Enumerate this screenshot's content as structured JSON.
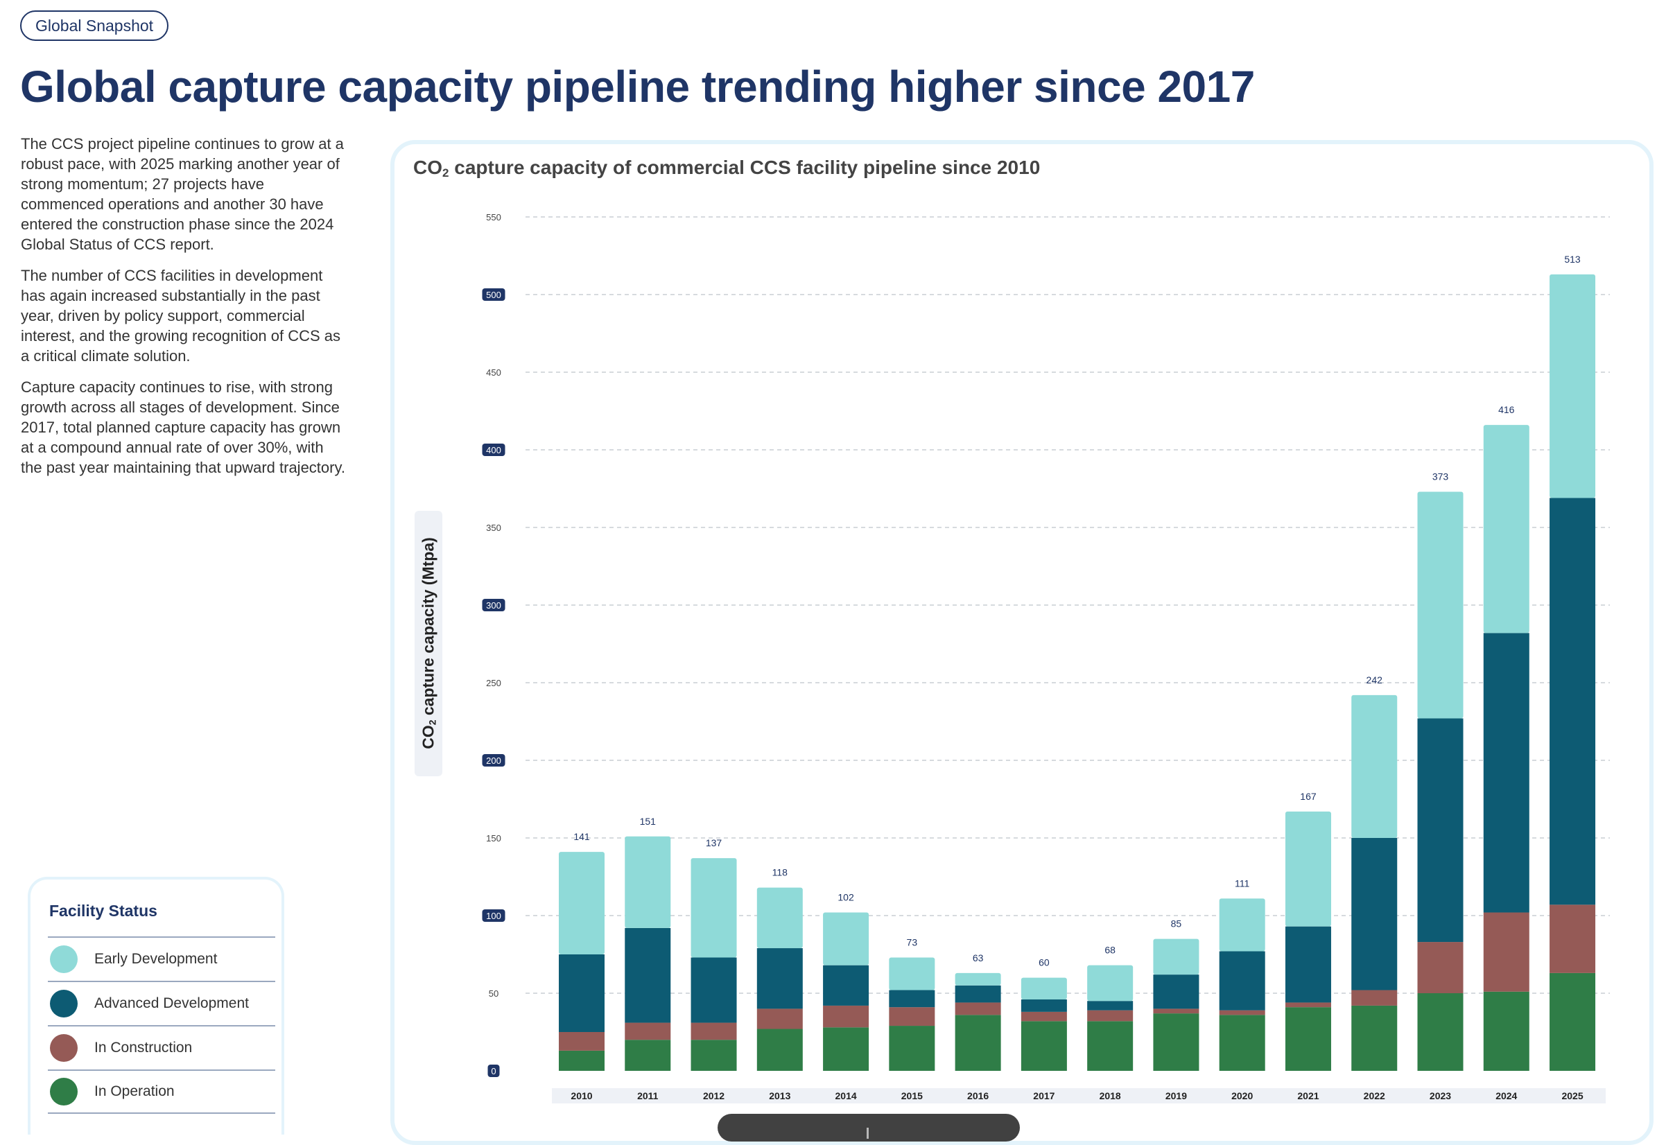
{
  "badge": "Global Snapshot",
  "headline": "Global capture capacity pipeline trending higher since 2017",
  "intro": [
    "The CCS project pipeline continues to grow at a robust pace, with 2025 marking another year of strong momentum; 27 projects have commenced operations and another 30 have entered the construction phase since the 2024 Global Status of CCS report.",
    "The number of CCS facilities in development has again increased substantially in the past year, driven by policy support, commercial interest, and the growing recognition of CCS as a critical climate solution.",
    "Capture capacity continues to rise, with strong growth across all stages of development. Since 2017, total planned capture capacity has grown at a compound annual rate of over 30%, with the past year maintaining that upward trajectory."
  ],
  "legend": {
    "title": "Facility Status",
    "items": [
      {
        "label": "Early Development",
        "color": "#8fdad8"
      },
      {
        "label": "Advanced Development",
        "color": "#0d5b73"
      },
      {
        "label": "In Construction",
        "color": "#955a56"
      },
      {
        "label": "In Operation",
        "color": "#2f7d47"
      }
    ]
  },
  "chart_data": {
    "type": "bar",
    "stacked": true,
    "title_parts": {
      "pre": "CO",
      "sub": "2",
      "post": " capture capacity of commercial CCS facility pipeline since 2010"
    },
    "ylabel_parts": {
      "pre": "CO",
      "sub": "2",
      "post": " capture capacity (Mtpa)"
    },
    "xlabel": "",
    "ylim": [
      0,
      550
    ],
    "yticks": [
      0,
      50,
      100,
      150,
      200,
      250,
      300,
      350,
      400,
      450,
      500,
      550
    ],
    "highlighted_ticks": [
      0,
      100,
      200,
      300,
      400,
      500
    ],
    "grid": true,
    "categories": [
      "2010",
      "2011",
      "2012",
      "2013",
      "2014",
      "2015",
      "2016",
      "2017",
      "2018",
      "2019",
      "2020",
      "2021",
      "2022",
      "2023",
      "2024",
      "2025"
    ],
    "totals": [
      141,
      151,
      137,
      118,
      102,
      73,
      63,
      60,
      68,
      85,
      111,
      167,
      242,
      373,
      416,
      513
    ],
    "series": [
      {
        "name": "In Operation",
        "color": "#2f7d47",
        "values": [
          13,
          20,
          20,
          27,
          28,
          29,
          36,
          32,
          32,
          37,
          36,
          41,
          42,
          50,
          51,
          63
        ]
      },
      {
        "name": "In Construction",
        "color": "#955a56",
        "values": [
          12,
          11,
          11,
          13,
          14,
          12,
          8,
          6,
          7,
          3,
          3,
          3,
          10,
          33,
          51,
          44
        ]
      },
      {
        "name": "Advanced Development",
        "color": "#0d5b73",
        "values": [
          50,
          61,
          42,
          39,
          26,
          11,
          11,
          8,
          6,
          22,
          38,
          49,
          98,
          144,
          180,
          262
        ]
      },
      {
        "name": "Early Development",
        "color": "#8fdad8",
        "values": [
          66,
          59,
          64,
          39,
          34,
          21,
          8,
          14,
          23,
          23,
          34,
          74,
          92,
          146,
          134,
          144
        ]
      }
    ]
  }
}
